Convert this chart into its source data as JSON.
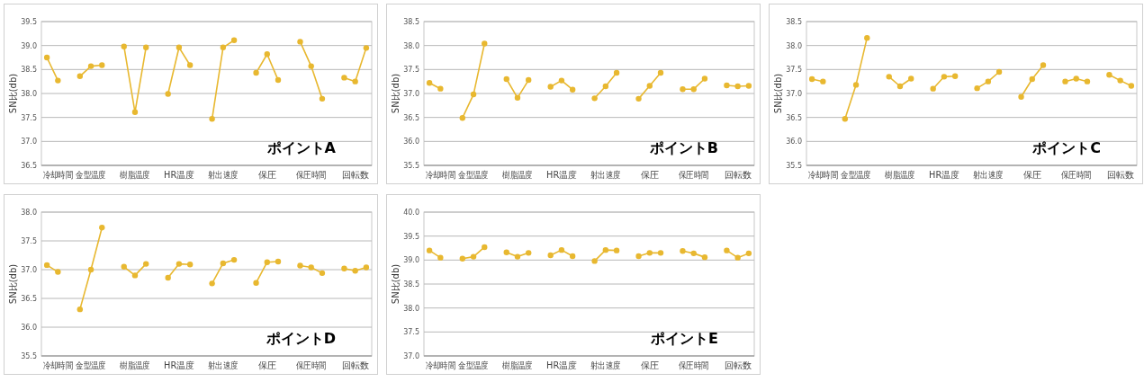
{
  "chart_data": [
    {
      "type": "line",
      "ylabel": "SN比(db)",
      "annotations": [
        "ポイントA"
      ],
      "color": "#e8b830",
      "marker": "circle",
      "grid": "y",
      "categories": [
        null,
        "冷却時間",
        null,
        null,
        "金型温度",
        null,
        null,
        null,
        "樹脂温度",
        null,
        null,
        null,
        "HR温度",
        null,
        null,
        null,
        "射出速度",
        null,
        null,
        null,
        "保圧",
        null,
        null,
        null,
        "保圧時間",
        null,
        null,
        null,
        "回転数",
        null
      ],
      "values": [
        38.75,
        38.27,
        null,
        38.36,
        38.57,
        38.59,
        null,
        38.98,
        37.61,
        38.96,
        null,
        37.99,
        38.96,
        38.59,
        null,
        37.47,
        38.96,
        39.11,
        null,
        38.43,
        38.82,
        38.28,
        null,
        39.08,
        38.57,
        37.89,
        null,
        38.33,
        38.25,
        38.95
      ],
      "ylim": [
        36.5,
        39.5
      ],
      "yticks": [
        {
          "value": 36.5,
          "label": "36.5"
        },
        {
          "value": 37,
          "label": "37.0"
        },
        {
          "value": 37.5,
          "label": "37.5"
        },
        {
          "value": 38,
          "label": "38.0"
        },
        {
          "value": 38.5,
          "label": "38.5"
        },
        {
          "value": 39,
          "label": "39.0"
        },
        {
          "value": 39.5,
          "label": "39.5"
        }
      ]
    },
    {
      "type": "line",
      "ylabel": "SN比(db)",
      "annotations": [
        "ポイントB"
      ],
      "color": "#e8b830",
      "marker": "circle",
      "grid": "y",
      "categories": [
        null,
        "冷却時間",
        null,
        null,
        "金型温度",
        null,
        null,
        null,
        "樹脂温度",
        null,
        null,
        null,
        "HR温度",
        null,
        null,
        null,
        "射出速度",
        null,
        null,
        null,
        "保圧",
        null,
        null,
        null,
        "保圧時間",
        null,
        null,
        null,
        "回転数",
        null
      ],
      "values": [
        37.22,
        37.1,
        null,
        36.49,
        36.98,
        38.04,
        null,
        37.3,
        36.91,
        37.28,
        null,
        37.14,
        37.27,
        37.08,
        null,
        36.9,
        37.15,
        37.43,
        null,
        36.89,
        37.16,
        37.43,
        null,
        37.09,
        37.09,
        37.31,
        null,
        37.17,
        37.15,
        37.16
      ],
      "ylim": [
        35.5,
        38.5
      ],
      "yticks": [
        {
          "value": 35.5,
          "label": "35.5"
        },
        {
          "value": 36,
          "label": "36.0"
        },
        {
          "value": 36.5,
          "label": "36.5"
        },
        {
          "value": 37,
          "label": "37.0"
        },
        {
          "value": 37.5,
          "label": "37.5"
        },
        {
          "value": 38,
          "label": "38.0"
        },
        {
          "value": 38.5,
          "label": "38.5"
        }
      ]
    },
    {
      "type": "line",
      "ylabel": "SN比(db)",
      "annotations": [
        "ポイントC"
      ],
      "color": "#e8b830",
      "marker": "circle",
      "grid": "y",
      "categories": [
        null,
        "冷却時間",
        null,
        null,
        "金型温度",
        null,
        null,
        null,
        "樹脂温度",
        null,
        null,
        null,
        "HR温度",
        null,
        null,
        null,
        "射出速度",
        null,
        null,
        null,
        "保圧",
        null,
        null,
        null,
        "保圧時間",
        null,
        null,
        null,
        "回転数",
        null
      ],
      "values": [
        37.3,
        37.25,
        null,
        36.47,
        37.18,
        38.16,
        null,
        37.35,
        37.15,
        37.31,
        null,
        37.1,
        37.35,
        37.36,
        null,
        37.11,
        37.25,
        37.45,
        null,
        36.93,
        37.3,
        37.59,
        null,
        37.25,
        37.31,
        37.25,
        null,
        37.39,
        37.27,
        37.16
      ],
      "ylim": [
        35.5,
        38.5
      ],
      "yticks": [
        {
          "value": 35.5,
          "label": "35.5"
        },
        {
          "value": 36,
          "label": "36.0"
        },
        {
          "value": 36.5,
          "label": "36.5"
        },
        {
          "value": 37,
          "label": "37.0"
        },
        {
          "value": 37.5,
          "label": "37.5"
        },
        {
          "value": 38,
          "label": "38.0"
        },
        {
          "value": 38.5,
          "label": "38.5"
        }
      ]
    },
    {
      "type": "line",
      "ylabel": "SN比(db)",
      "annotations": [
        "ポイントD"
      ],
      "color": "#e8b830",
      "marker": "circle",
      "grid": "y",
      "categories": [
        null,
        "冷却時間",
        null,
        null,
        "金型温度",
        null,
        null,
        null,
        "樹脂温度",
        null,
        null,
        null,
        "HR温度",
        null,
        null,
        null,
        "射出速度",
        null,
        null,
        null,
        "保圧",
        null,
        null,
        null,
        "保圧時間",
        null,
        null,
        null,
        "回転数",
        null
      ],
      "values": [
        37.08,
        36.96,
        null,
        36.31,
        37.0,
        37.73,
        null,
        37.05,
        36.9,
        37.1,
        null,
        36.86,
        37.1,
        37.09,
        null,
        36.76,
        37.11,
        37.17,
        null,
        36.77,
        37.13,
        37.14,
        null,
        37.07,
        37.04,
        36.94,
        null,
        37.02,
        36.98,
        37.04
      ],
      "ylim": [
        35.5,
        38.0
      ],
      "yticks": [
        {
          "value": 35.5,
          "label": "35.5"
        },
        {
          "value": 36,
          "label": "36.0"
        },
        {
          "value": 36.5,
          "label": "36.5"
        },
        {
          "value": 37,
          "label": "37.0"
        },
        {
          "value": 37.5,
          "label": "37.5"
        },
        {
          "value": 38,
          "label": "38.0"
        }
      ]
    },
    {
      "type": "line",
      "ylabel": "SN比(db)",
      "annotations": [
        "ポイントE"
      ],
      "color": "#e8b830",
      "marker": "circle",
      "grid": "y",
      "categories": [
        null,
        "冷却時間",
        null,
        null,
        "金型温度",
        null,
        null,
        null,
        "樹脂温度",
        null,
        null,
        null,
        "HR温度",
        null,
        null,
        null,
        "射出速度",
        null,
        null,
        null,
        "保圧",
        null,
        null,
        null,
        "保圧時間",
        null,
        null,
        null,
        "回転数",
        null
      ],
      "values": [
        39.2,
        39.05,
        null,
        39.03,
        39.07,
        39.27,
        null,
        39.16,
        39.07,
        39.15,
        null,
        39.1,
        39.21,
        39.08,
        null,
        38.98,
        39.21,
        39.2,
        null,
        39.08,
        39.15,
        39.15,
        null,
        39.19,
        39.14,
        39.06,
        null,
        39.2,
        39.05,
        39.14
      ],
      "ylim": [
        37.0,
        40.0
      ],
      "yticks": [
        {
          "value": 37,
          "label": "37.0"
        },
        {
          "value": 37.5,
          "label": "37.5"
        },
        {
          "value": 38,
          "label": "38.0"
        },
        {
          "value": 38.5,
          "label": "38.5"
        },
        {
          "value": 39,
          "label": "39.0"
        },
        {
          "value": 39.5,
          "label": "39.5"
        },
        {
          "value": 40,
          "label": "40.0"
        }
      ]
    }
  ]
}
